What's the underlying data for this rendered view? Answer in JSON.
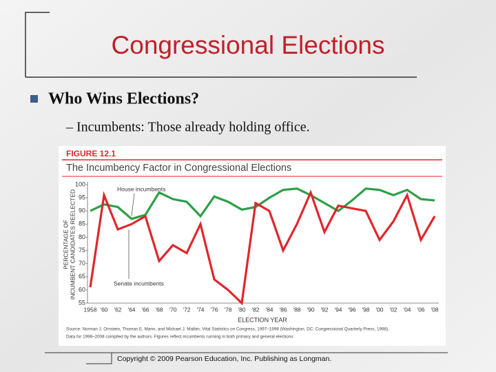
{
  "slide": {
    "title": "Congressional Elections",
    "bullet": "Who Wins Elections?",
    "sub_bullet": "– Incumbents: Those already holding office.",
    "figure_label": "FIGURE 12.1",
    "footer": "Copyright © 2009 Pearson Education, Inc. Publishing as Longman."
  },
  "chart_data": {
    "type": "line",
    "title": "The Incumbency Factor in Congressional Elections",
    "y_label": [
      "PERCENTAGE OF",
      "INCUMBENT CANDIDATES REELECTED"
    ],
    "x_label": "ELECTION YEAR",
    "source": [
      "Source: Norman J. Ornstein, Thomas E. Mann, and Michael J. Malbin, Vital Statistics on Congress, 1997–1998 (Washington, DC: Congressional Quarterly Press, 1998).",
      "Data for 1998–2008 compiled by the authors. Figures reflect incumbents running in both primary and general elections."
    ],
    "categories": [
      "1958",
      "'60",
      "'62",
      "'64",
      "'66",
      "'68",
      "'70",
      "'72",
      "'74",
      "'76",
      "'78",
      "'80",
      "'82",
      "'84",
      "'86",
      "'88",
      "'90",
      "'92",
      "'94",
      "'96",
      "'98",
      "'00",
      "'02",
      "'04",
      "'06",
      "'08"
    ],
    "series": [
      {
        "name": "House incumbents",
        "color": "#2e9e48",
        "values": [
          90,
          92.5,
          91.5,
          87,
          88.5,
          97,
          94.5,
          93.5,
          88,
          95.5,
          93.5,
          90.5,
          91.5,
          95,
          98,
          98.5,
          96,
          93,
          90,
          94,
          98.5,
          98,
          96,
          98,
          94.5,
          94
        ]
      },
      {
        "name": "Senate incumbents",
        "color": "#e0262b",
        "values": [
          61,
          96,
          83,
          85,
          88,
          71,
          77,
          74,
          85,
          64,
          60,
          55,
          93,
          90,
          75,
          85,
          97,
          82,
          92,
          91,
          90,
          79,
          86,
          96,
          79,
          88
        ]
      }
    ],
    "ylim": [
      55,
      100
    ],
    "yticks": [
      55,
      60,
      65,
      70,
      75,
      80,
      85,
      90,
      95,
      100
    ],
    "grid": false
  }
}
